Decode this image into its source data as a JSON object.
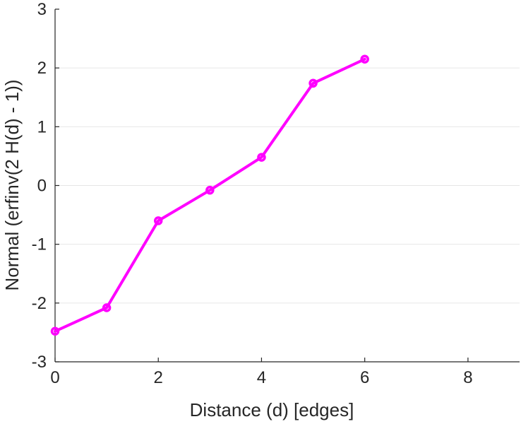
{
  "chart_data": {
    "type": "line",
    "title": "",
    "xlabel": "Distance (d) [edges]",
    "ylabel": "Normal (erfinv(2 H(d) - 1))",
    "xlim": [
      0,
      9
    ],
    "ylim": [
      -3,
      3
    ],
    "xticks": [
      0,
      2,
      4,
      6,
      8
    ],
    "yticks": [
      -3,
      -2,
      -1,
      0,
      1,
      2,
      3
    ],
    "grid": "horizontal",
    "series": [
      {
        "color": "#ff00ff",
        "marker": "circle",
        "x": [
          0,
          1,
          2,
          3,
          4,
          5,
          6
        ],
        "y": [
          -2.48,
          -2.08,
          -0.6,
          -0.08,
          0.48,
          1.74,
          2.15
        ]
      }
    ]
  }
}
